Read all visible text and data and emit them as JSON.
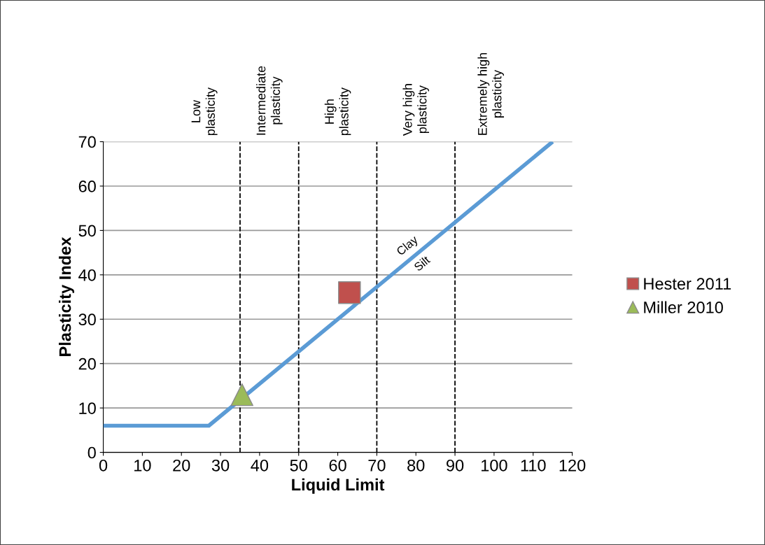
{
  "chart_data": {
    "type": "line",
    "xlabel": "Liquid Limit",
    "ylabel": "Plasticity Index",
    "xlim": [
      0,
      120
    ],
    "xticks": [
      0,
      10,
      20,
      30,
      40,
      50,
      60,
      70,
      80,
      90,
      100,
      110,
      120
    ],
    "ylim": [
      0,
      70
    ],
    "yticks": [
      0,
      10,
      20,
      30,
      40,
      50,
      60,
      70
    ],
    "grid": "y",
    "legend": "right",
    "series": [
      {
        "color": "#5b9bd5",
        "x": [
          0,
          27,
          115
        ],
        "values": [
          6,
          6,
          70
        ],
        "marker": "none"
      },
      {
        "type": "scatter",
        "name": "Hester 2011",
        "color": "#c0504d",
        "x": [
          63
        ],
        "values": [
          36
        ],
        "marker": "square"
      },
      {
        "type": "scatter",
        "name": "Miller 2010",
        "color": "#9bbb59",
        "x": [
          35.5
        ],
        "values": [
          13
        ],
        "marker": "triangle"
      }
    ],
    "ref_lines": [
      {
        "axis": "x",
        "value": 35,
        "line_style": "dashed",
        "color": "#000000"
      },
      {
        "axis": "x",
        "value": 50,
        "line_style": "dashed",
        "color": "#000000"
      },
      {
        "axis": "x",
        "value": 70,
        "line_style": "dashed",
        "color": "#000000"
      },
      {
        "axis": "x",
        "value": 90,
        "line_style": "dashed",
        "color": "#000000"
      }
    ],
    "annotations": [
      "Low\nplasticity",
      "Intermediate\nplasticity",
      "High\nplasticity",
      "Very high\nplasticity",
      "Extremely high\nplasticity",
      "Clay",
      "Silt"
    ]
  }
}
